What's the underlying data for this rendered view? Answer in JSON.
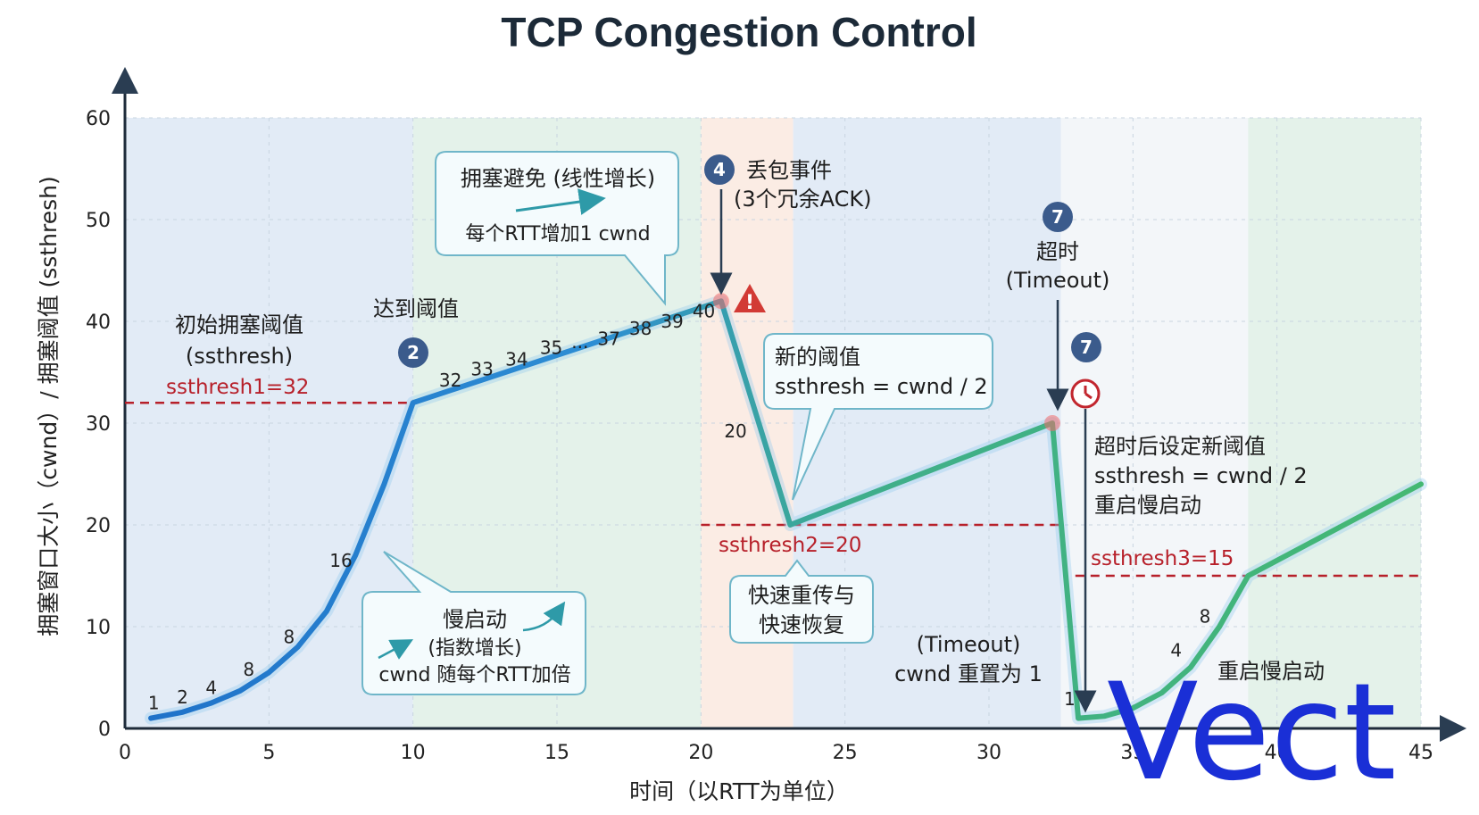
{
  "chart_data": {
    "type": "line",
    "title": "TCP Congestion Control",
    "xlabel": "时间（以RTT为单位）",
    "ylabel": "拥塞窗口大小（cwnd）/ 拥塞阈值 (ssthresh)",
    "xlim": [
      0,
      45
    ],
    "ylim": [
      0,
      60
    ],
    "x_ticks": [
      0,
      5,
      10,
      15,
      20,
      25,
      30,
      35,
      40,
      45
    ],
    "y_ticks": [
      0,
      10,
      20,
      30,
      40,
      50,
      60
    ],
    "grid": true,
    "series": [
      {
        "name": "cwnd",
        "points": [
          [
            0.9,
            1
          ],
          [
            2,
            1.6
          ],
          [
            3,
            2.5
          ],
          [
            4,
            3.7
          ],
          [
            5,
            5.5
          ],
          [
            6,
            8
          ],
          [
            7,
            11.5
          ],
          [
            8,
            17
          ],
          [
            9,
            24
          ],
          [
            10,
            32
          ],
          [
            20.7,
            42
          ],
          [
            23.1,
            20
          ],
          [
            32.2,
            30
          ],
          [
            33.1,
            1
          ],
          [
            34,
            1.2
          ],
          [
            35,
            2
          ],
          [
            36,
            3.5
          ],
          [
            37,
            6
          ],
          [
            38,
            10
          ],
          [
            39,
            15
          ],
          [
            45,
            24
          ]
        ]
      }
    ],
    "thresholds": [
      {
        "label": "ssthresh1=32",
        "value": 32,
        "x_range": [
          0,
          10
        ]
      },
      {
        "label": "ssthresh2=20",
        "value": 20,
        "x_range": [
          20,
          32.5
        ]
      },
      {
        "label": "ssthresh3=15",
        "value": 15,
        "x_range": [
          33,
          45
        ]
      }
    ],
    "phases": [
      {
        "x_range": [
          0,
          10
        ],
        "color": "#dde8f4"
      },
      {
        "x_range": [
          10,
          20
        ],
        "color": "#dff0e6"
      },
      {
        "x_range": [
          20,
          23.2
        ],
        "color": "#fae9df"
      },
      {
        "x_range": [
          23.2,
          32.5
        ],
        "color": "#dde8f4"
      },
      {
        "x_range": [
          32.5,
          39
        ],
        "color": "#f1f5f8"
      },
      {
        "x_range": [
          39,
          45
        ],
        "color": "#dff0e6"
      }
    ],
    "point_labels": [
      {
        "text": "1",
        "x": 1,
        "y": 1
      },
      {
        "text": "2",
        "x": 2,
        "y": 1.6
      },
      {
        "text": "4",
        "x": 3,
        "y": 2.5
      },
      {
        "text": "8",
        "x": 4.3,
        "y": 4.3
      },
      {
        "text": "8",
        "x": 5.7,
        "y": 7.5
      },
      {
        "text": "16",
        "x": 7.5,
        "y": 15
      },
      {
        "text": "32",
        "x": 11.3,
        "y": 32.7
      },
      {
        "text": "33",
        "x": 12.4,
        "y": 33.8
      },
      {
        "text": "34",
        "x": 13.6,
        "y": 34.8
      },
      {
        "text": "35",
        "x": 14.8,
        "y": 35.9
      },
      {
        "text": "...",
        "x": 15.8,
        "y": 36.5
      },
      {
        "text": "37",
        "x": 16.8,
        "y": 36.8
      },
      {
        "text": "38",
        "x": 17.9,
        "y": 37.8
      },
      {
        "text": "39",
        "x": 19,
        "y": 38.5
      },
      {
        "text": "40",
        "x": 20.1,
        "y": 39.5
      },
      {
        "text": "20",
        "x": 21.2,
        "y": 27.7
      },
      {
        "text": "1",
        "x": 32.8,
        "y": 1.4
      },
      {
        "text": "4",
        "x": 36.5,
        "y": 6.2
      },
      {
        "text": "8",
        "x": 37.5,
        "y": 9.5
      }
    ],
    "annotations": {
      "initial_threshold": {
        "title": "初始拥塞阈值",
        "sub": "(ssthresh)"
      },
      "reach_threshold": "达到阈值",
      "congestion_avoidance": {
        "title": "拥塞避免 (线性增长)",
        "desc": "每个RTT增加1 cwnd"
      },
      "slow_start": {
        "title": "慢启动",
        "sub": "(指数增长)",
        "desc": "cwnd 随每个RTT加倍"
      },
      "loss_event": {
        "title": "丢包事件",
        "sub": "(3个冗余ACK)"
      },
      "new_threshold": {
        "title": "新的阈值",
        "formula": "ssthresh = cwnd / 2"
      },
      "fast_recovery": {
        "line1": "快速重传与",
        "line2": "快速恢复"
      },
      "timeout": {
        "title": "超时",
        "sub": "(Timeout)"
      },
      "timeout_reset": {
        "line1": "(Timeout)",
        "line2": "cwnd 重置为 1"
      },
      "after_timeout": {
        "line1": "超时后设定新阈值",
        "line2": "ssthresh = cwnd / 2",
        "line3": "重启慢启动"
      },
      "restart_slow_start": "重启慢启动",
      "badges": {
        "two": "2",
        "four": "4",
        "seven": "7"
      }
    },
    "watermark": "Vect"
  }
}
